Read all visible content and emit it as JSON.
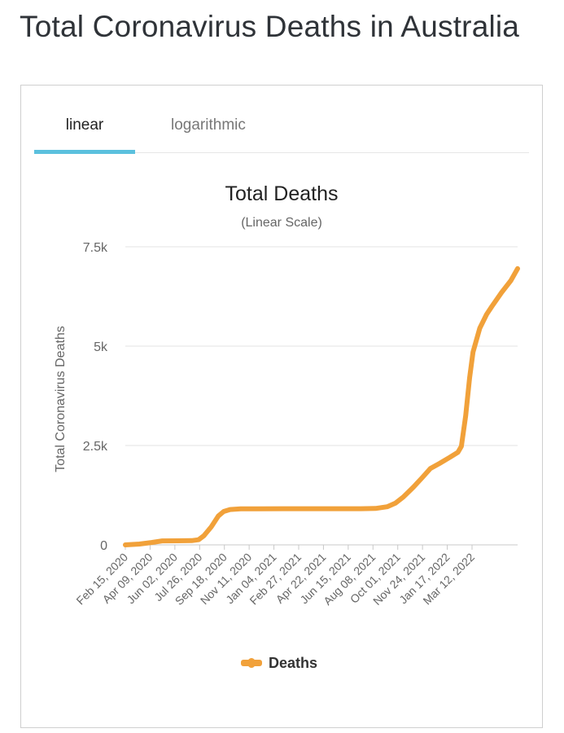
{
  "page": {
    "title": "Total Coronavirus Deaths in Australia"
  },
  "tabs": [
    {
      "label": "linear",
      "active": true
    },
    {
      "label": "logarithmic",
      "active": false
    }
  ],
  "colors": {
    "series": "#f1a13a",
    "active_tab_underline": "#5bc0de",
    "grid": "#e3e3e3"
  },
  "chart_data": {
    "type": "line",
    "title": "Total Deaths",
    "subtitle": "(Linear Scale)",
    "ylabel": "Total Coronavirus Deaths",
    "xlabel": "",
    "ylim": [
      0,
      7500
    ],
    "yticks": [
      0,
      2500,
      5000,
      7500
    ],
    "ytick_labels": [
      "0",
      "2.5k",
      "5k",
      "7.5k"
    ],
    "xlim": [
      "2020-02-15",
      "2022-05-04"
    ],
    "xtick_labels": [
      "Feb 15, 2020",
      "Apr 09, 2020",
      "Jun 02, 2020",
      "Jul 26, 2020",
      "Sep 18, 2020",
      "Nov 11, 2020",
      "Jan 04, 2021",
      "Feb 27, 2021",
      "Apr 22, 2021",
      "Jun 15, 2021",
      "Aug 08, 2021",
      "Oct 01, 2021",
      "Nov 24, 2021",
      "Jan 17, 2022",
      "Mar 12, 2022"
    ],
    "grid": true,
    "legend": "bottom",
    "series": [
      {
        "name": "Deaths",
        "x": [
          "2020-02-15",
          "2020-03-15",
          "2020-04-09",
          "2020-05-01",
          "2020-06-02",
          "2020-07-01",
          "2020-07-15",
          "2020-07-26",
          "2020-08-10",
          "2020-08-25",
          "2020-09-05",
          "2020-09-18",
          "2020-10-10",
          "2020-11-11",
          "2021-01-04",
          "2021-02-27",
          "2021-04-22",
          "2021-06-15",
          "2021-07-15",
          "2021-08-08",
          "2021-08-25",
          "2021-09-10",
          "2021-10-01",
          "2021-10-20",
          "2021-11-05",
          "2021-11-24",
          "2021-12-15",
          "2022-01-01",
          "2022-01-08",
          "2022-01-17",
          "2022-01-25",
          "2022-02-01",
          "2022-02-15",
          "2022-03-01",
          "2022-03-12",
          "2022-04-01",
          "2022-04-20",
          "2022-05-04"
        ],
        "y": [
          0,
          20,
          60,
          100,
          102,
          106,
          130,
          230,
          450,
          730,
          840,
          890,
          905,
          907,
          909,
          910,
          910,
          910,
          915,
          960,
          1050,
          1200,
          1450,
          1700,
          1920,
          2050,
          2200,
          2330,
          2480,
          3250,
          4200,
          4850,
          5450,
          5800,
          6000,
          6350,
          6650,
          6950
        ]
      }
    ]
  }
}
